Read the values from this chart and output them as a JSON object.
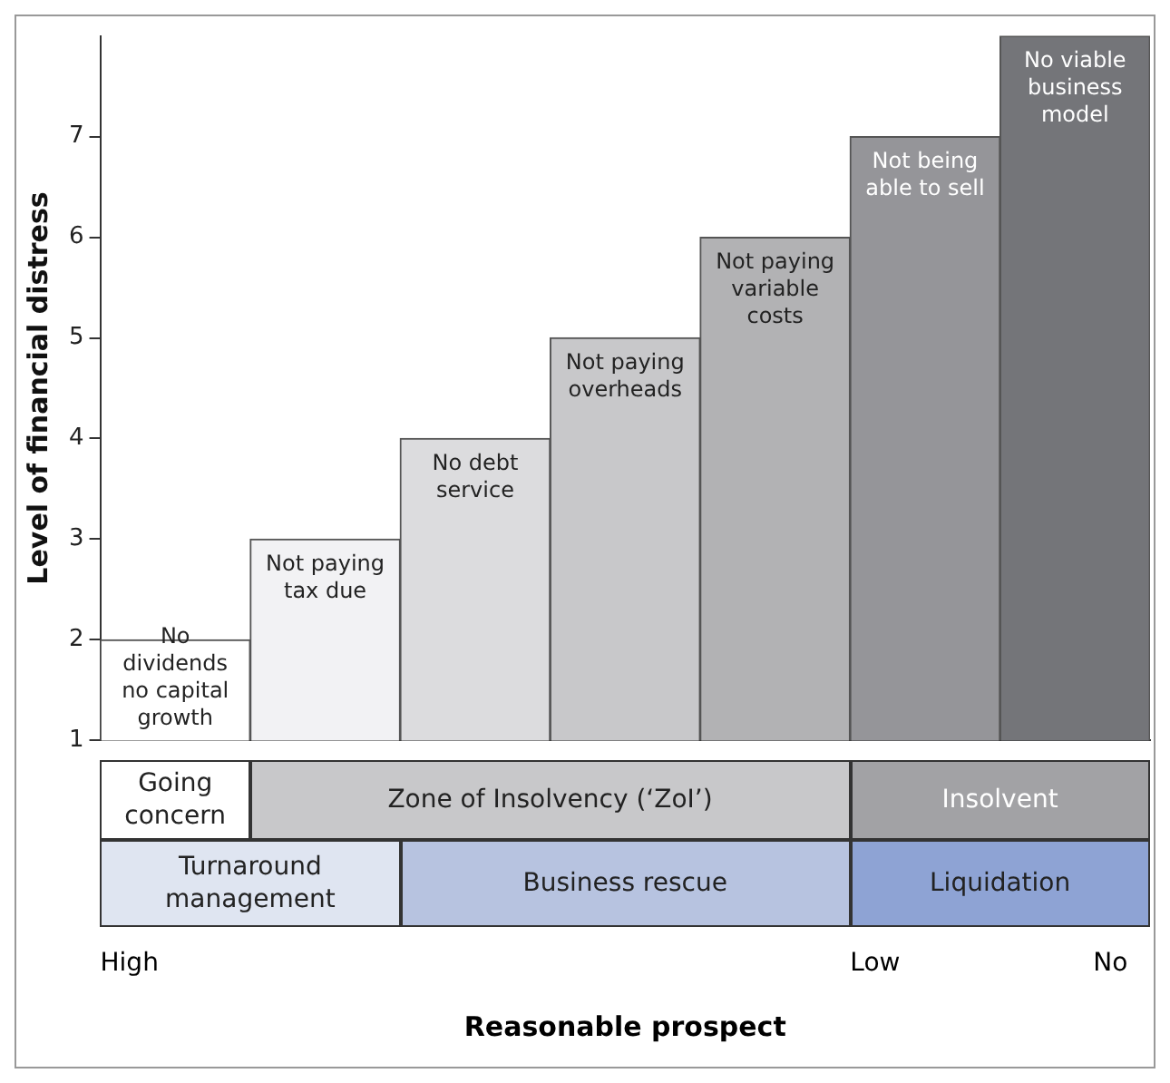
{
  "chart_data": {
    "type": "bar",
    "ylabel": "Level of financial distress",
    "categories": [
      "No dividends no capital growth",
      "Not paying tax due",
      "No debt service",
      "Not paying overheads",
      "Not paying variable costs",
      "Not being able to sell",
      "No viable business model"
    ],
    "base": [
      1,
      1,
      1,
      1,
      1,
      1,
      1
    ],
    "values": [
      1,
      2,
      3,
      4,
      5,
      6,
      7
    ],
    "colors": [
      "#ffffff",
      "#f2f2f4",
      "#dcdcde",
      "#c8c8ca",
      "#b2b2b4",
      "#959599",
      "#747579"
    ],
    "ylim": [
      1,
      8
    ],
    "yticks": [
      1,
      2,
      3,
      4,
      5,
      6,
      7
    ],
    "grid": false,
    "legend": false,
    "annotations": [
      "Going concern",
      "Zone of Insolvency (‘ZoI’)",
      "Insolvent",
      "Turnaround management",
      "Business rescue",
      "Liquidation",
      "High",
      "Low",
      "No",
      "Reasonable prospect"
    ]
  }
}
